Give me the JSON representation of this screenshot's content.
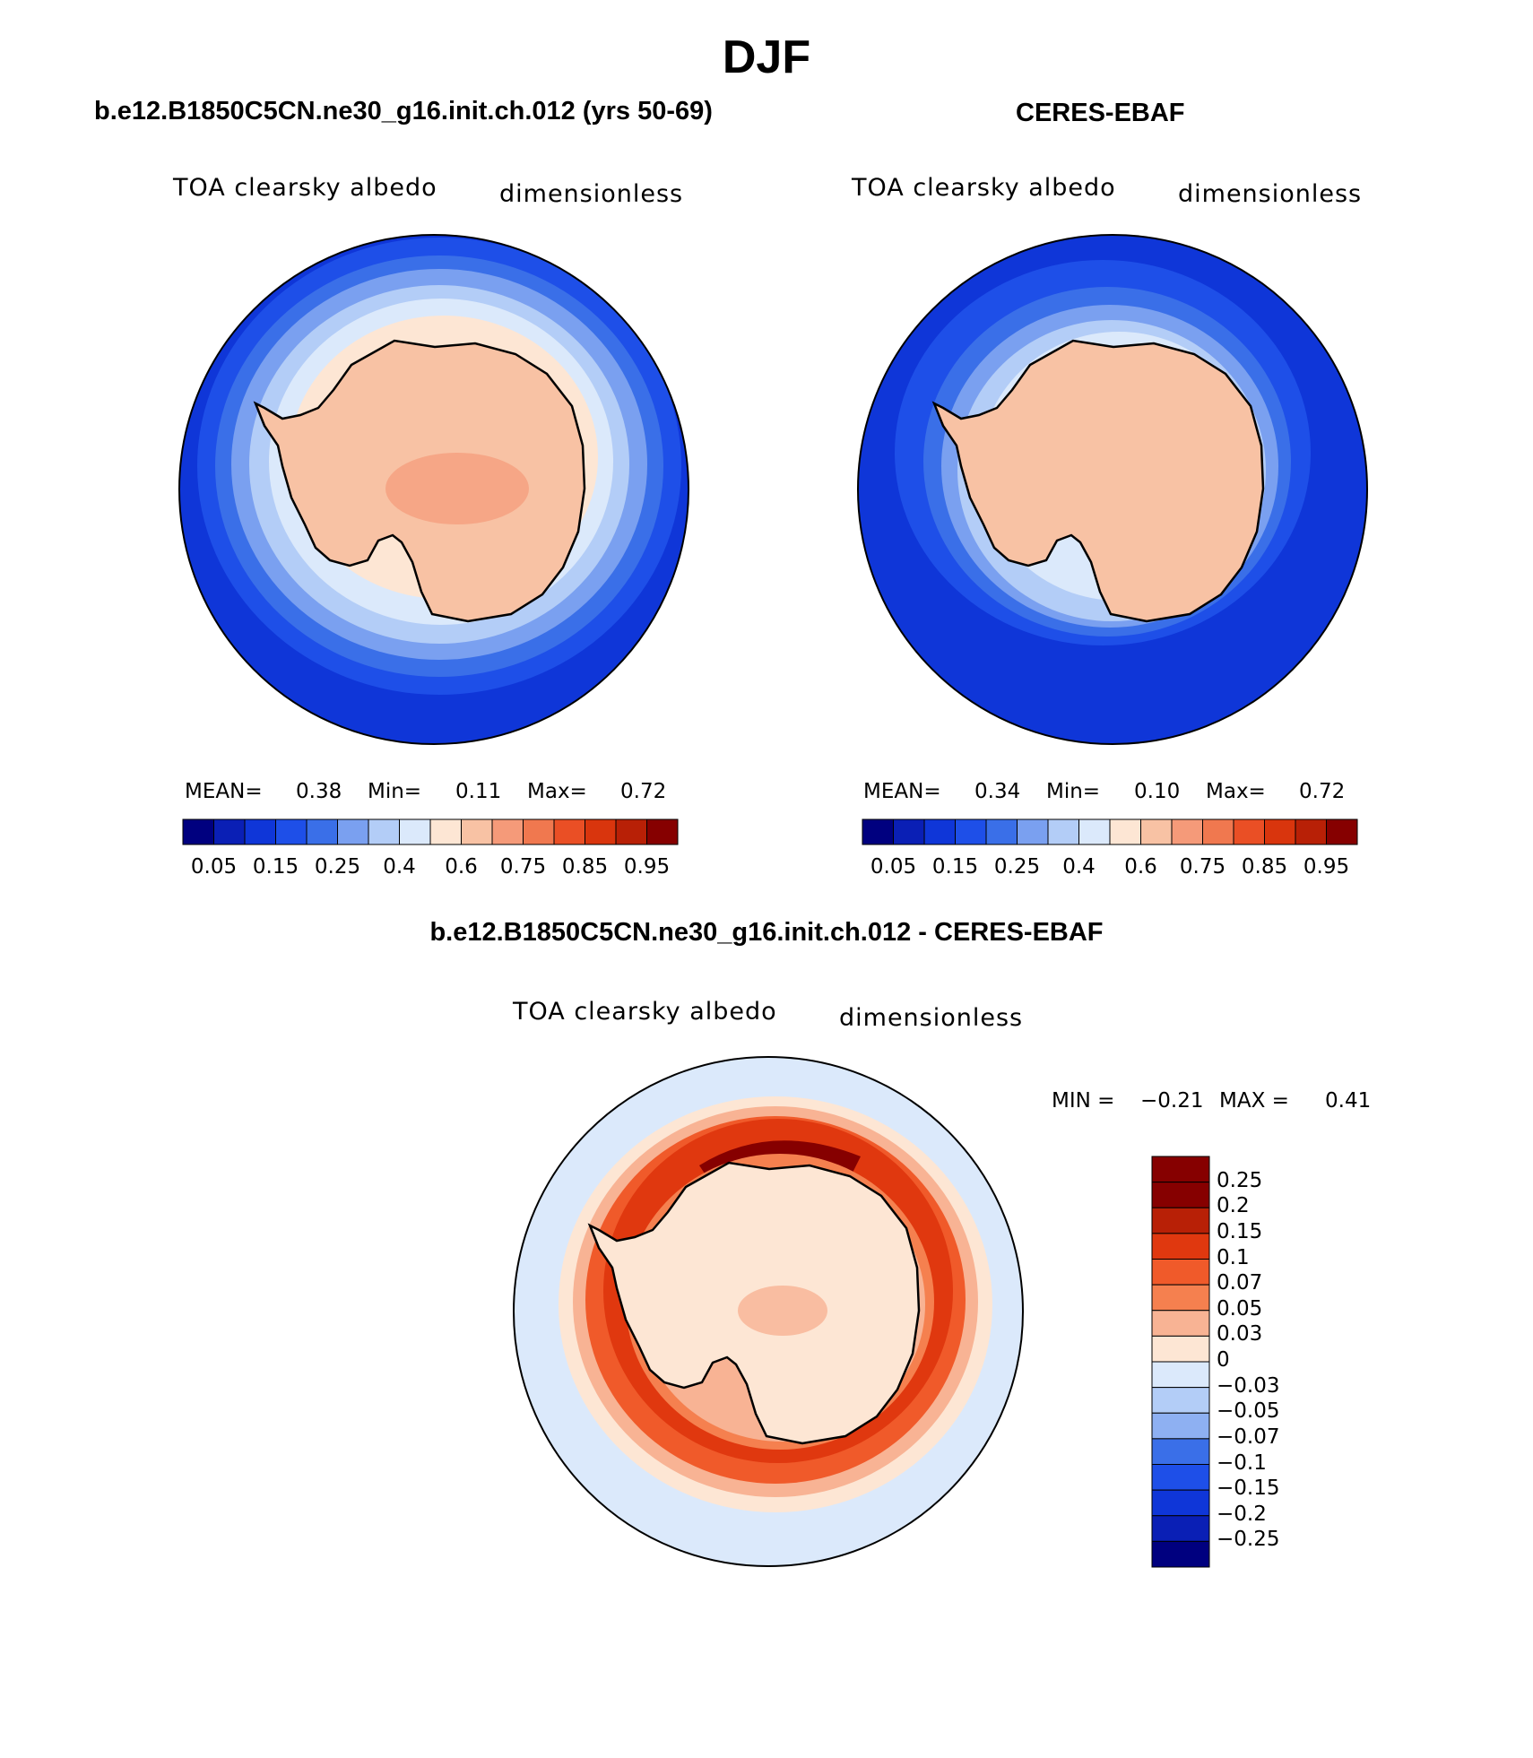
{
  "page": {
    "title": "DJF"
  },
  "panels": [
    {
      "title": "b.e12.B1850C5CN.ne30_g16.init.ch.012 (yrs 50-69)",
      "variable": "TOA clearsky albedo",
      "units": "dimensionless",
      "stats": {
        "mean_label": "MEAN=",
        "mean": "0.38",
        "min_label": "Min=",
        "min": "0.11",
        "max_label": "Max=",
        "max": "0.72"
      }
    },
    {
      "title": "CERES-EBAF",
      "variable": "TOA clearsky albedo",
      "units": "dimensionless",
      "stats": {
        "mean_label": "MEAN=",
        "mean": "0.34",
        "min_label": "Min=",
        "min": "0.10",
        "max_label": "Max=",
        "max": "0.72"
      }
    },
    {
      "title": "b.e12.B1850C5CN.ne30_g16.init.ch.012 - CERES-EBAF",
      "variable": "TOA clearsky albedo",
      "units": "dimensionless",
      "stats": {
        "min_label": "MIN =",
        "min": "−0.21",
        "max_label": "MAX =",
        "max": "0.41"
      }
    }
  ],
  "colorbars": {
    "albedo": {
      "colors": [
        "#00007f",
        "#0a1fb5",
        "#0f36d8",
        "#1e4fe8",
        "#3a6fe8",
        "#7aa0f0",
        "#b3cdf7",
        "#dbe9fb",
        "#fde6d4",
        "#f8c2a4",
        "#f59a79",
        "#f0784f",
        "#ea4f25",
        "#d9350d",
        "#b82006",
        "#860000"
      ],
      "ticks": [
        "0.05",
        "0.15",
        "0.25",
        "0.4",
        "0.6",
        "0.75",
        "0.85",
        "0.95"
      ]
    },
    "diff": {
      "colors": [
        "#860000",
        "#b82006",
        "#e0380f",
        "#f05a2a",
        "#f5804f",
        "#f8b394",
        "#fde6d4",
        "#dbe9fb",
        "#b3cdf7",
        "#8eb0f2",
        "#3a6fe8",
        "#1e4fe8",
        "#0f36d8",
        "#0a1fb5",
        "#00007f"
      ],
      "ticks": [
        "0.25",
        "0.2",
        "0.15",
        "0.1",
        "0.07",
        "0.05",
        "0.03",
        "0",
        "−0.03",
        "−0.05",
        "−0.07",
        "−0.1",
        "−0.15",
        "−0.2",
        "−0.25"
      ]
    }
  },
  "map": {
    "region": "Antarctica",
    "projection": "south polar stereographic",
    "fills": {
      "ocean_model": "#0f36d8",
      "ocean_obs": "#0f36d8",
      "ocean_diff": "#dbe9fb",
      "land_albedo": "#f8c2a4",
      "land_diff": "#fde6d4",
      "ring_diff": "#e0380f"
    }
  }
}
